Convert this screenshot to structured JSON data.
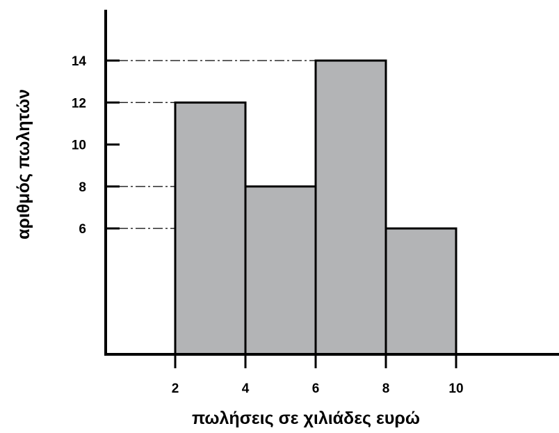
{
  "chart_data": {
    "type": "bar",
    "subtype": "histogram",
    "bins": [
      {
        "x0": 2,
        "x1": 4,
        "value": 12
      },
      {
        "x0": 4,
        "x1": 6,
        "value": 8
      },
      {
        "x0": 6,
        "x1": 8,
        "value": 14
      },
      {
        "x0": 8,
        "x1": 10,
        "value": 6
      }
    ],
    "x_ticks": [
      "2",
      "4",
      "6",
      "8",
      "10"
    ],
    "y_ticks": [
      "6",
      "8",
      "10",
      "12",
      "14"
    ],
    "xlabel": "πωλήσεις σε χιλιάδες ευρώ",
    "ylabel": "αριθμός πωλητών",
    "xlim": [
      -2,
      13
    ],
    "ylim": [
      0,
      16.3
    ],
    "bar_color": "#b3b4b6",
    "guide_lines": true,
    "grid": false
  }
}
